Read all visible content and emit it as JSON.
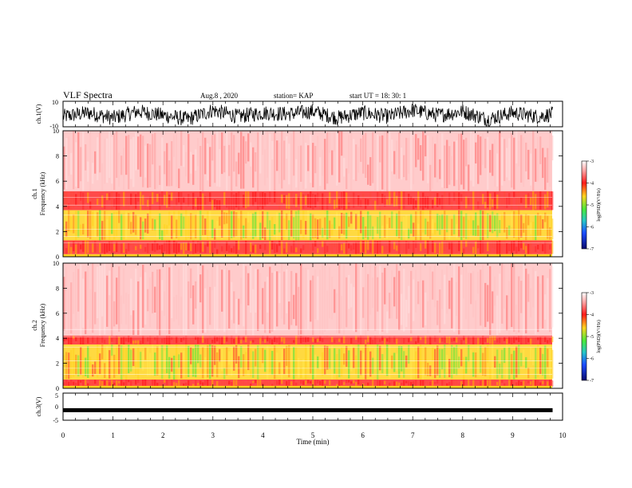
{
  "header": {
    "title": "VLF Spectra",
    "date": "Aug.8  , 2020",
    "station": "station= KAP",
    "start_ut": "start  UT  =   18: 30: 1"
  },
  "colors": {
    "background": "#ffffff",
    "spectrum_red": "#ff2a2a",
    "spectrum_pink": "#ffb3b3",
    "spectrum_yellow": "#ffd21f",
    "spectrum_green": "#55e63a",
    "trace": "#000000"
  },
  "chart_data": [
    {
      "type": "line",
      "panel": "ch1-waveform",
      "ylabel": "ch.1(V)",
      "ylim": [
        -10,
        10
      ],
      "yticks": [
        "10",
        "-10"
      ],
      "xlim": [
        0,
        10
      ],
      "samples": {
        "x": [
          0,
          0.5,
          1,
          1.5,
          2,
          2.5,
          3,
          3.5,
          4,
          4.5,
          5,
          5.5,
          6,
          6.5,
          7,
          7.5,
          8,
          8.5,
          9,
          9.5,
          9.8
        ],
        "y": [
          -2,
          1,
          -3,
          2,
          -1,
          -4,
          3,
          -2,
          1,
          0,
          2,
          -3,
          1,
          -2,
          3,
          -1,
          2,
          -4,
          1,
          -2,
          0
        ]
      }
    },
    {
      "type": "heatmap",
      "panel": "ch1-spectrogram",
      "ylabel": "ch.1\nFrequency  (kHz)",
      "ylim": [
        0,
        10
      ],
      "yticks": [
        "0",
        "2",
        "4",
        "6",
        "8",
        "10"
      ],
      "xlim": [
        0,
        10
      ],
      "colorbar": {
        "label": "log(PSD)(V²/Hz)",
        "range": [
          -7,
          -3
        ],
        "ticks": [
          "-3",
          "-4",
          "-5",
          "-6",
          "-7"
        ]
      },
      "bands_khz": [
        {
          "from": 5.2,
          "to": 10.0,
          "level": "pink"
        },
        {
          "from": 3.7,
          "to": 5.2,
          "level": "red"
        },
        {
          "from": 1.3,
          "to": 3.7,
          "level": "yellow-green"
        },
        {
          "from": 0.2,
          "to": 1.3,
          "level": "red"
        }
      ]
    },
    {
      "type": "heatmap",
      "panel": "ch2-spectrogram",
      "ylabel": "ch.2\nFrequency  (kHz)",
      "ylim": [
        0,
        10
      ],
      "yticks": [
        "0",
        "2",
        "4",
        "6",
        "8",
        "10"
      ],
      "xlim": [
        0,
        10
      ],
      "colorbar": {
        "label": "log(PSD)(V²/Hz)",
        "range": [
          -7,
          -3
        ],
        "ticks": [
          "-3",
          "-4",
          "-5",
          "-6",
          "-7"
        ]
      },
      "bands_khz": [
        {
          "from": 4.2,
          "to": 10.0,
          "level": "pink"
        },
        {
          "from": 3.5,
          "to": 4.2,
          "level": "red"
        },
        {
          "from": 0.7,
          "to": 3.5,
          "level": "yellow-green"
        },
        {
          "from": 0.1,
          "to": 0.7,
          "level": "red"
        }
      ]
    },
    {
      "type": "line",
      "panel": "ch3-waveform",
      "ylabel": "ch.3(V)",
      "ylim": [
        -5,
        5
      ],
      "yticks": [
        "5",
        "0",
        "-5"
      ],
      "xlim": [
        0,
        10
      ],
      "xlabel": "Time  (min)",
      "xticks": [
        "0",
        "1",
        "2",
        "3",
        "4",
        "5",
        "6",
        "7",
        "8",
        "9",
        "10"
      ],
      "samples": {
        "x": [
          0,
          9.8
        ],
        "y": [
          -1.3,
          -1.3
        ]
      }
    }
  ]
}
